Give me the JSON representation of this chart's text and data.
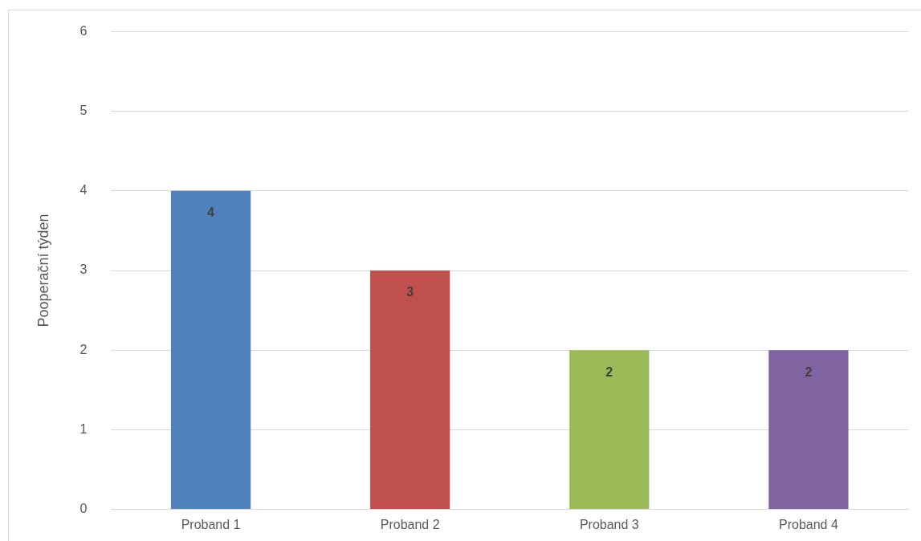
{
  "chart_data": {
    "type": "bar",
    "ylabel": "Pooperační týden",
    "categories": [
      "Proband 1",
      "Proband 2",
      "Proband 3",
      "Proband 4"
    ],
    "values": [
      4,
      3,
      2,
      2
    ],
    "colors": [
      "#4f81bd",
      "#c0504d",
      "#9bbb59",
      "#8064a2"
    ],
    "ylim": [
      0,
      6
    ],
    "yticks": [
      0,
      1,
      2,
      3,
      4,
      5,
      6
    ],
    "grid": "y",
    "data_labels": true
  }
}
